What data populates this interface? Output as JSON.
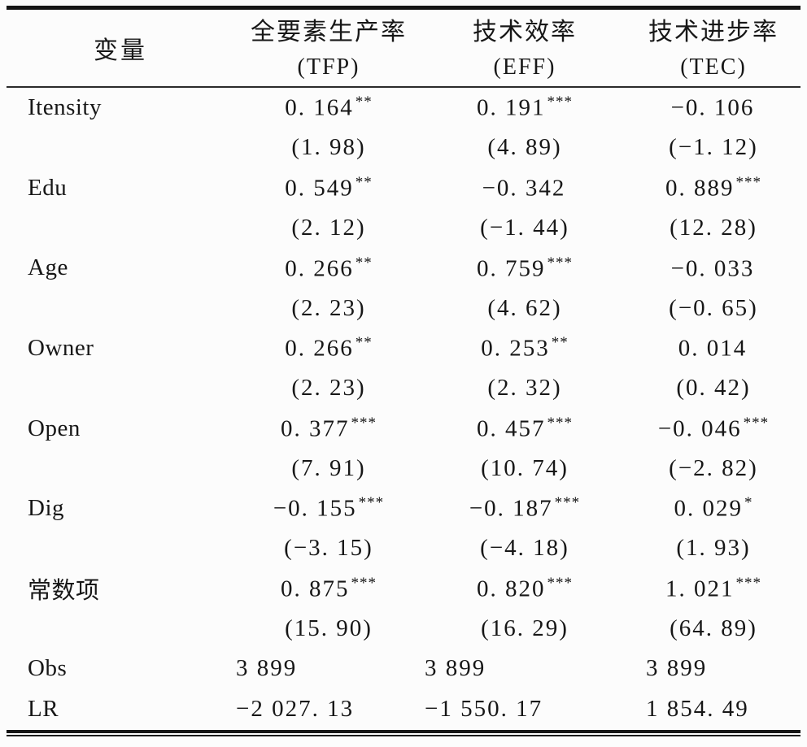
{
  "page": {
    "background": "#fcfcfc",
    "ink": "#171717"
  },
  "table": {
    "header": {
      "variable_label": "变量",
      "columns": [
        {
          "name": "全要素生产率",
          "abbr": "(TFP)"
        },
        {
          "name": "技术效率",
          "abbr": "(EFF)"
        },
        {
          "name": "技术进步率",
          "abbr": "(TEC)"
        }
      ]
    },
    "rows": [
      {
        "label": "Itensity",
        "cells": [
          {
            "value": "0. 164",
            "stars": "**",
            "t": "(1. 98)"
          },
          {
            "value": "0. 191",
            "stars": "***",
            "t": "(4. 89)"
          },
          {
            "value": "−0. 106",
            "stars": "",
            "t": "(−1. 12)"
          }
        ]
      },
      {
        "label": "Edu",
        "cells": [
          {
            "value": "0. 549",
            "stars": "**",
            "t": "(2. 12)"
          },
          {
            "value": "−0. 342",
            "stars": "",
            "t": "(−1. 44)"
          },
          {
            "value": "0. 889",
            "stars": "***",
            "t": "(12. 28)"
          }
        ]
      },
      {
        "label": "Age",
        "cells": [
          {
            "value": "0. 266",
            "stars": "**",
            "t": "(2. 23)"
          },
          {
            "value": "0. 759",
            "stars": "***",
            "t": "(4. 62)"
          },
          {
            "value": "−0. 033",
            "stars": "",
            "t": "(−0. 65)"
          }
        ]
      },
      {
        "label": "Owner",
        "cells": [
          {
            "value": "0. 266",
            "stars": "**",
            "t": "(2. 23)"
          },
          {
            "value": "0. 253",
            "stars": "**",
            "t": "(2. 32)"
          },
          {
            "value": "0. 014",
            "stars": "",
            "t": "(0. 42)"
          }
        ]
      },
      {
        "label": "Open",
        "cells": [
          {
            "value": "0. 377",
            "stars": "***",
            "t": "(7. 91)"
          },
          {
            "value": "0. 457",
            "stars": "***",
            "t": "(10. 74)"
          },
          {
            "value": "−0. 046",
            "stars": "***",
            "t": "(−2. 82)"
          }
        ]
      },
      {
        "label": "Dig",
        "cells": [
          {
            "value": "−0. 155",
            "stars": "***",
            "t": "(−3. 15)"
          },
          {
            "value": "−0. 187",
            "stars": "***",
            "t": "(−4. 18)"
          },
          {
            "value": "0. 029",
            "stars": "*",
            "t": "(1. 93)"
          }
        ]
      },
      {
        "label": "常数项",
        "cells": [
          {
            "value": "0. 875",
            "stars": "***",
            "t": "(15. 90)"
          },
          {
            "value": "0. 820",
            "stars": "***",
            "t": "(16. 29)"
          },
          {
            "value": "1. 021",
            "stars": "***",
            "t": "(64. 89)"
          }
        ]
      }
    ],
    "stats": [
      {
        "label": "Obs",
        "values": [
          "3 899",
          "3 899",
          "3 899"
        ]
      },
      {
        "label": "LR",
        "values": [
          "−2 027. 13",
          "−1 550. 17",
          "1 854. 49"
        ]
      }
    ]
  }
}
